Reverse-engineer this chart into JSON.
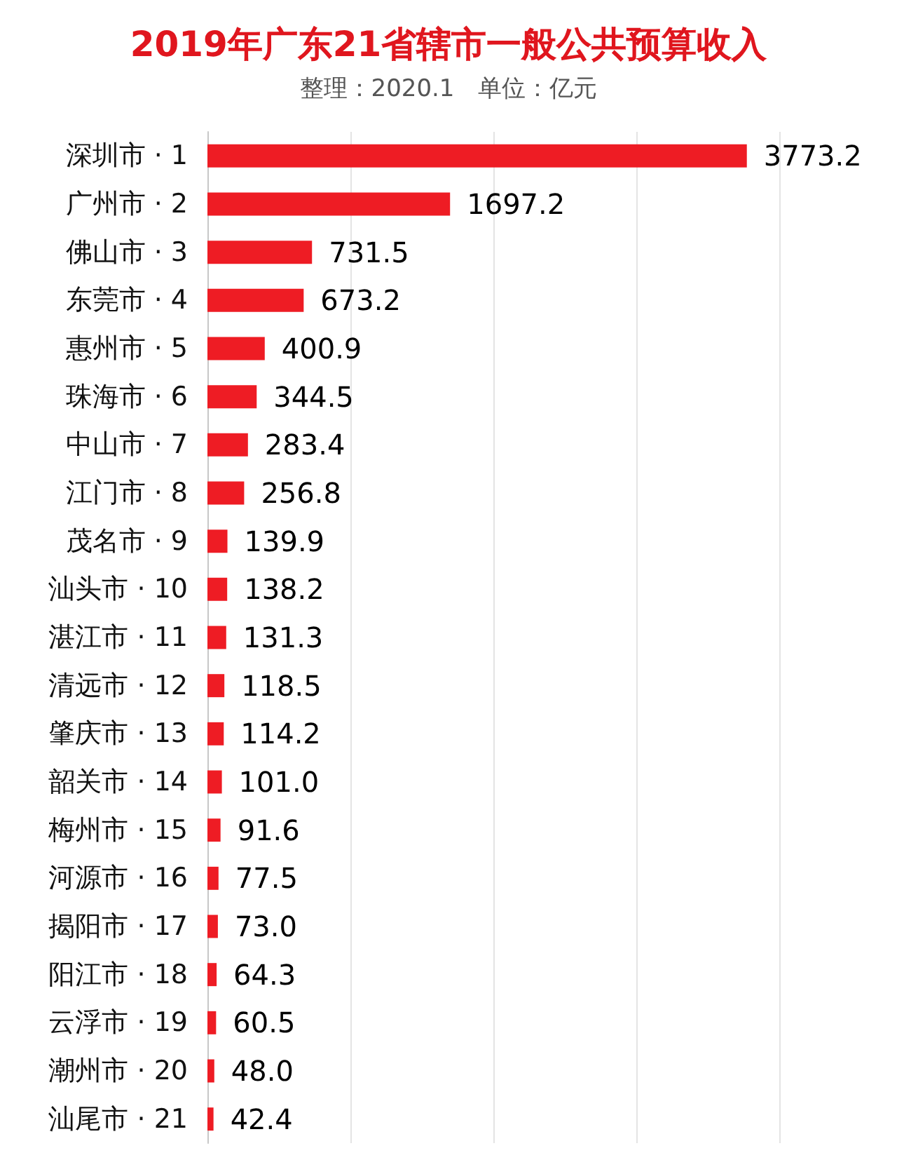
{
  "chart_data": {
    "type": "bar",
    "orientation": "horizontal",
    "title": "2019年广东21省辖市一般公共预算收入",
    "subtitle": "整理：2020.1　单位：亿元",
    "categories": [
      "深圳市 · 1",
      "广州市 · 2",
      "佛山市 · 3",
      "东莞市 · 4",
      "惠州市 · 5",
      "珠海市 · 6",
      "中山市 · 7",
      "江门市 · 8",
      "茂名市 · 9",
      "汕头市 · 10",
      "湛江市 · 11",
      "清远市 · 12",
      "肇庆市 · 13",
      "韶关市 · 14",
      "梅州市 · 15",
      "河源市 · 16",
      "揭阳市 · 17",
      "阳江市 · 18",
      "云浮市 · 19",
      "潮州市 · 20",
      "汕尾市 · 21"
    ],
    "values": [
      3773.2,
      1697.2,
      731.5,
      673.2,
      400.9,
      344.5,
      283.4,
      256.8,
      139.9,
      138.2,
      131.3,
      118.5,
      114.2,
      101.0,
      91.6,
      77.5,
      73.0,
      64.3,
      60.5,
      48.0,
      42.4
    ],
    "value_labels": [
      "3773.2",
      "1697.2",
      "731.5",
      "673.2",
      "400.9",
      "344.5",
      "283.4",
      "256.8",
      "139.9",
      "138.2",
      "131.3",
      "118.5",
      "114.2",
      "101.0",
      "91.6",
      "77.5",
      "73.0",
      "64.3",
      "60.5",
      "48.0",
      "42.4"
    ],
    "color": "#ee1c24",
    "xlim": [
      0,
      4000
    ],
    "xticks": [
      {
        "value": 0,
        "label": null
      },
      {
        "value": 1000,
        "label": null
      },
      {
        "value": 2000,
        "label": null
      },
      {
        "value": 3000,
        "label": null
      },
      {
        "value": 4000,
        "label": null
      }
    ],
    "grid": "x",
    "tick_labels": "y"
  }
}
